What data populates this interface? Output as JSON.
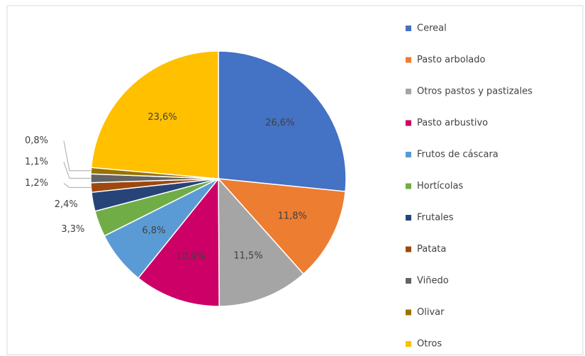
{
  "chart_data": {
    "type": "pie",
    "categories": [
      "Cereal",
      "Pasto arbolado",
      "Otros pastos y pastizales",
      "Pasto arbustivo",
      "Frutos de cáscara",
      "Hortícolas",
      "Frutales",
      "Patata",
      "Viñedo",
      "Olivar",
      "Otros"
    ],
    "values": [
      26.6,
      11.8,
      11.5,
      10.9,
      6.8,
      3.3,
      2.4,
      1.2,
      1.1,
      0.8,
      23.6
    ],
    "value_labels": [
      "26,6%",
      "11,8%",
      "11,5%",
      "10,9%",
      "6,8%",
      "3,3%",
      "2,4%",
      "1,2%",
      "1,1%",
      "0,8%",
      "23,6%"
    ],
    "colors": [
      "#4472c4",
      "#ed7d31",
      "#a5a5a5",
      "#cc0066",
      "#5b9bd5",
      "#70ad47",
      "#264478",
      "#9e480e",
      "#636363",
      "#997300",
      "#ffc000"
    ],
    "legend": "right"
  }
}
